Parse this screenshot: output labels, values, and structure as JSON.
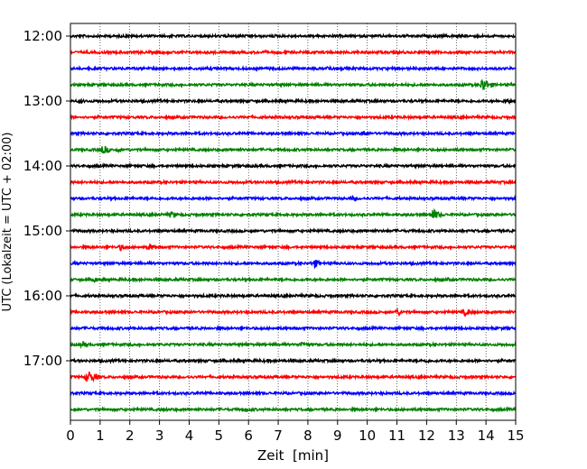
{
  "chart_data": {
    "type": "line",
    "title": "",
    "xlabel": "Zeit  [min]",
    "ylabel": "UTC (Lokalzeit = UTC + 02:00)",
    "xlim": [
      0,
      15
    ],
    "x_ticks": [
      "0",
      "1",
      "2",
      "3",
      "4",
      "5",
      "6",
      "7",
      "8",
      "9",
      "10",
      "11",
      "12",
      "13",
      "14",
      "15"
    ],
    "y_tick_labels": [
      "12:00",
      "13:00",
      "14:00",
      "15:00",
      "16:00",
      "17:00"
    ],
    "grid": "vertical dotted lines at each minute",
    "rows_per_hour": 4,
    "row_interval_min": 15,
    "start_time": "12:00",
    "colors": [
      "#000000",
      "#ff0000",
      "#0000ff",
      "#008000"
    ],
    "traces": [
      {
        "start": "12:00",
        "events": []
      },
      {
        "start": "12:15",
        "events": [
          {
            "t": 6.6,
            "amp": 0.2
          }
        ]
      },
      {
        "start": "12:30",
        "events": [
          {
            "t": 8.7,
            "amp": 0.35
          }
        ]
      },
      {
        "start": "12:45",
        "events": [
          {
            "t": 13.9,
            "amp": 0.9
          }
        ]
      },
      {
        "start": "13:00",
        "events": [
          {
            "t": 0.3,
            "amp": 0.3
          },
          {
            "t": 14.7,
            "amp": 0.4
          }
        ]
      },
      {
        "start": "13:15",
        "events": [
          {
            "t": 6.1,
            "amp": 0.15
          }
        ]
      },
      {
        "start": "13:30",
        "events": [
          {
            "t": 9.9,
            "amp": 0.4
          }
        ]
      },
      {
        "start": "13:45",
        "events": [
          {
            "t": 1.1,
            "amp": 0.6
          },
          {
            "t": 1.6,
            "amp": 0.3
          }
        ]
      },
      {
        "start": "14:00",
        "events": []
      },
      {
        "start": "14:15",
        "events": []
      },
      {
        "start": "14:30",
        "events": [
          {
            "t": 9.5,
            "amp": 0.3
          }
        ]
      },
      {
        "start": "14:45",
        "events": [
          {
            "t": 3.4,
            "amp": 0.4
          },
          {
            "t": 12.2,
            "amp": 0.8
          }
        ]
      },
      {
        "start": "15:00",
        "events": []
      },
      {
        "start": "15:15",
        "events": [
          {
            "t": 1.7,
            "amp": 0.45
          },
          {
            "t": 2.65,
            "amp": 0.5
          },
          {
            "t": 6.3,
            "amp": 0.2
          }
        ]
      },
      {
        "start": "15:30",
        "events": [
          {
            "t": 8.2,
            "amp": 0.6
          }
        ]
      },
      {
        "start": "15:45",
        "events": [
          {
            "t": 0.8,
            "amp": 0.35
          },
          {
            "t": 12.7,
            "amp": 0.25
          }
        ]
      },
      {
        "start": "16:00",
        "events": []
      },
      {
        "start": "16:15",
        "events": [
          {
            "t": 11.0,
            "amp": 0.45
          },
          {
            "t": 13.3,
            "amp": 0.5
          }
        ]
      },
      {
        "start": "16:30",
        "events": []
      },
      {
        "start": "16:45",
        "events": [
          {
            "t": 0.4,
            "amp": 0.4
          },
          {
            "t": 5.9,
            "amp": 0.3
          },
          {
            "t": 7.8,
            "amp": 0.4
          }
        ]
      },
      {
        "start": "17:00",
        "events": [
          {
            "t": 7.2,
            "amp": 0.2
          },
          {
            "t": 12.0,
            "amp": 0.3
          }
        ]
      },
      {
        "start": "17:15",
        "events": [
          {
            "t": 0.6,
            "amp": 0.9
          }
        ]
      },
      {
        "start": "17:30",
        "events": []
      },
      {
        "start": "17:45",
        "events": [
          {
            "t": 5.9,
            "amp": 0.35
          }
        ]
      }
    ]
  }
}
